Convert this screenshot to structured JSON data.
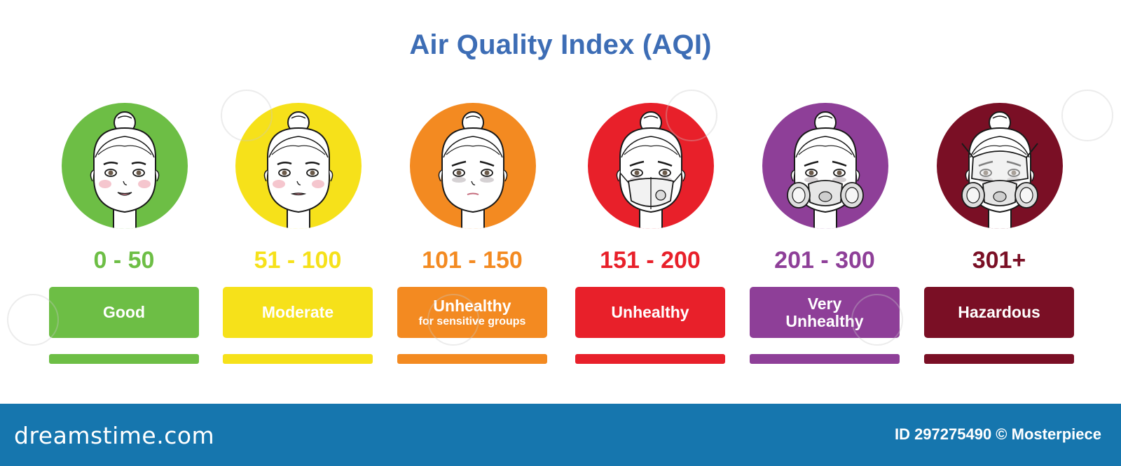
{
  "title": "Air Quality Index (AQI)",
  "levels": [
    {
      "range": "0 - 50",
      "label": "Good",
      "sublabel": "",
      "color": "#6dbe45",
      "face": "smile"
    },
    {
      "range": "51 - 100",
      "label": "Moderate",
      "sublabel": "",
      "color": "#f6e11a",
      "face": "neutral"
    },
    {
      "range": "101 - 150",
      "label": "Unhealthy",
      "sublabel": "for sensitive groups",
      "color": "#f38a21",
      "face": "sad"
    },
    {
      "range": "151 - 200",
      "label": "Unhealthy",
      "sublabel": "",
      "color": "#e8202a",
      "face": "mask"
    },
    {
      "range": "201 - 300",
      "label": "Very Unhealthy",
      "sublabel": "",
      "color": "#8e3f98",
      "face": "respirator"
    },
    {
      "range": "301+",
      "label": "Hazardous",
      "sublabel": "",
      "color": "#7a0f25",
      "face": "full-respirator"
    }
  ],
  "footer": {
    "brand": "dreamstime.com",
    "image_id": "ID 297275490 © Mosterpiece",
    "color": "#1676ae"
  },
  "title_color": "#3d6db5"
}
